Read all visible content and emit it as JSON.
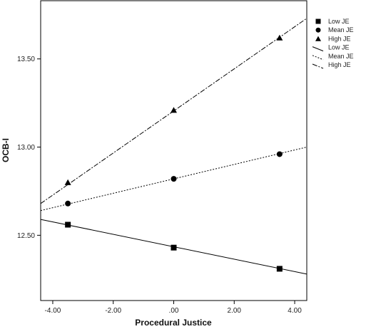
{
  "chart_data": {
    "type": "scatter",
    "xlabel": "Procedural Justice",
    "ylabel": "OCB-I",
    "xlim": [
      -4.4,
      4.4
    ],
    "ylim": [
      12.13,
      13.83
    ],
    "x_ticks": [
      -4,
      -2,
      0,
      2,
      4
    ],
    "x_tick_labels": [
      "-4.00",
      "-2.00",
      ".00",
      "2.00",
      "4.00"
    ],
    "y_ticks": [
      12.5,
      13.0,
      13.5
    ],
    "y_tick_labels": [
      "12.50",
      "13.00",
      "13.50"
    ],
    "grid": false,
    "legend_position": "top-right, outside plot",
    "series": [
      {
        "name": "Low JE",
        "kind": "points",
        "marker": "square",
        "x": [
          -3.5,
          0,
          3.5
        ],
        "y": [
          12.56,
          12.43,
          12.31
        ]
      },
      {
        "name": "Mean JE",
        "kind": "points",
        "marker": "circle",
        "x": [
          -3.5,
          0,
          3.5
        ],
        "y": [
          12.68,
          12.82,
          12.96
        ]
      },
      {
        "name": "High JE",
        "kind": "points",
        "marker": "triangle",
        "x": [
          -3.5,
          0,
          3.5
        ],
        "y": [
          12.8,
          13.21,
          13.62
        ]
      },
      {
        "name": "Low JE",
        "kind": "line",
        "dash": "solid",
        "x": [
          -4.4,
          4.4
        ],
        "y": [
          12.59,
          12.28
        ]
      },
      {
        "name": "Mean JE",
        "kind": "line",
        "dash": "dotted",
        "x": [
          -4.4,
          4.4
        ],
        "y": [
          12.64,
          13.0
        ]
      },
      {
        "name": "High JE",
        "kind": "line",
        "dash": "dashdot",
        "x": [
          -4.4,
          4.4
        ],
        "y": [
          12.68,
          13.73
        ]
      }
    ]
  }
}
